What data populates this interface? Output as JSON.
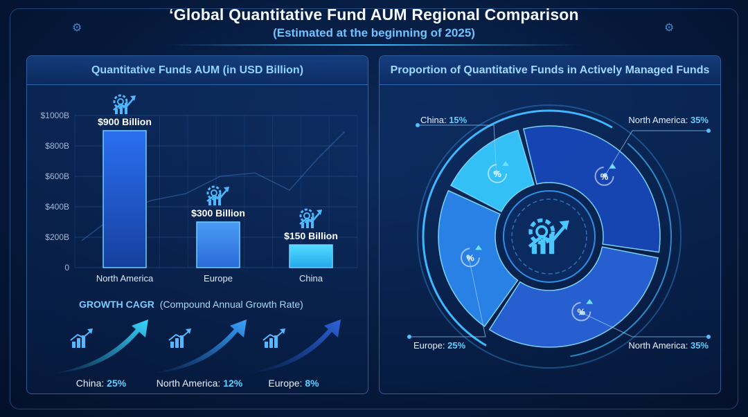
{
  "header": {
    "title": "‘Global Quantitative Fund AUM Regional Comparison",
    "subtitle": "(Estimated at the beginning of 2025)"
  },
  "chart_data": [
    {
      "type": "bar",
      "title": "Quantitative Funds AUM (in USD Billion)",
      "categories": [
        "North America",
        "Europe",
        "China"
      ],
      "values": [
        900,
        300,
        150
      ],
      "value_labels": [
        "$900 Billion",
        "$300 Billion",
        "$150 Billion"
      ],
      "yticks": [
        "0",
        "$200B",
        "$400B",
        "$600B",
        "$800B",
        "$1000B"
      ],
      "ylim": [
        0,
        1000
      ],
      "grid": true,
      "colors": [
        "#1f5fd6",
        "#3a8df0",
        "#3fd0ff"
      ]
    },
    {
      "type": "pie",
      "title": "Proportion of Quantitative Funds in Actively Managed Funds",
      "slices": [
        {
          "label": "China",
          "value": 15,
          "text": "15%",
          "color": "#35c9ff"
        },
        {
          "label": "North America",
          "value": 35,
          "text": "35%",
          "color": "#1747b8"
        },
        {
          "label": "North America",
          "value": 35,
          "text": "35%",
          "color": "#2a63d8"
        },
        {
          "label": "Europe",
          "value": 25,
          "text": "25%",
          "color": "#2b86ee"
        }
      ],
      "labels": [
        {
          "name": "China:",
          "value": "15%"
        },
        {
          "name": "North America:",
          "value": "35%"
        },
        {
          "name": "Europe:",
          "value": "25%"
        },
        {
          "name": "North America:",
          "value": "35%"
        }
      ],
      "slice_icon": "%"
    }
  ],
  "growth": {
    "heading_bold": "GROWTH CAGR",
    "heading_rest": "(Compound Annual Growth Rate)",
    "items": [
      {
        "name": "China:",
        "value": "25%",
        "color": "#38d6ff"
      },
      {
        "name": "North America:",
        "value": "12%",
        "color": "#2e8ff0"
      },
      {
        "name": "Europe:",
        "value": "8%",
        "color": "#2458c8"
      }
    ]
  },
  "icons": {
    "bar_icon": "gear-growth-chart-icon",
    "cagr_icon": "growth-bars-icon",
    "center_icon": "gear-growth-chart-icon",
    "slice_icon": "percent-up-icon"
  }
}
